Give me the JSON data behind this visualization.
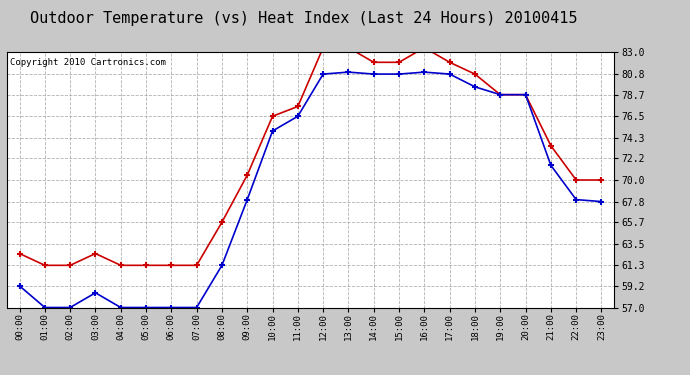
{
  "title": "Outdoor Temperature (vs) Heat Index (Last 24 Hours) 20100415",
  "copyright": "Copyright 2010 Cartronics.com",
  "hours": [
    "00:00",
    "01:00",
    "02:00",
    "03:00",
    "04:00",
    "05:00",
    "06:00",
    "07:00",
    "08:00",
    "09:00",
    "10:00",
    "11:00",
    "12:00",
    "13:00",
    "14:00",
    "15:00",
    "16:00",
    "17:00",
    "18:00",
    "19:00",
    "20:00",
    "21:00",
    "22:00",
    "23:00"
  ],
  "heat_index": [
    62.5,
    61.3,
    61.3,
    62.5,
    61.3,
    61.3,
    61.3,
    61.3,
    65.7,
    70.5,
    76.5,
    77.5,
    83.5,
    83.5,
    82.0,
    82.0,
    83.5,
    82.0,
    80.8,
    78.7,
    78.7,
    73.5,
    70.0,
    70.0
  ],
  "outdoor_temp": [
    59.2,
    57.0,
    57.0,
    58.5,
    57.0,
    57.0,
    57.0,
    57.0,
    61.3,
    68.0,
    75.0,
    76.5,
    80.8,
    81.0,
    80.8,
    80.8,
    81.0,
    80.8,
    79.5,
    78.7,
    78.7,
    71.5,
    68.0,
    67.8
  ],
  "ylim_min": 57.0,
  "ylim_max": 83.0,
  "yticks": [
    57.0,
    59.2,
    61.3,
    63.5,
    65.7,
    67.8,
    70.0,
    72.2,
    74.3,
    76.5,
    78.7,
    80.8,
    83.0
  ],
  "heat_index_color": "#cc0000",
  "outdoor_temp_color": "#0000cc",
  "bg_color": "#c8c8c8",
  "plot_bg_color": "#ffffff",
  "grid_color": "#aaaaaa",
  "title_fontsize": 11,
  "copyright_fontsize": 6.5
}
